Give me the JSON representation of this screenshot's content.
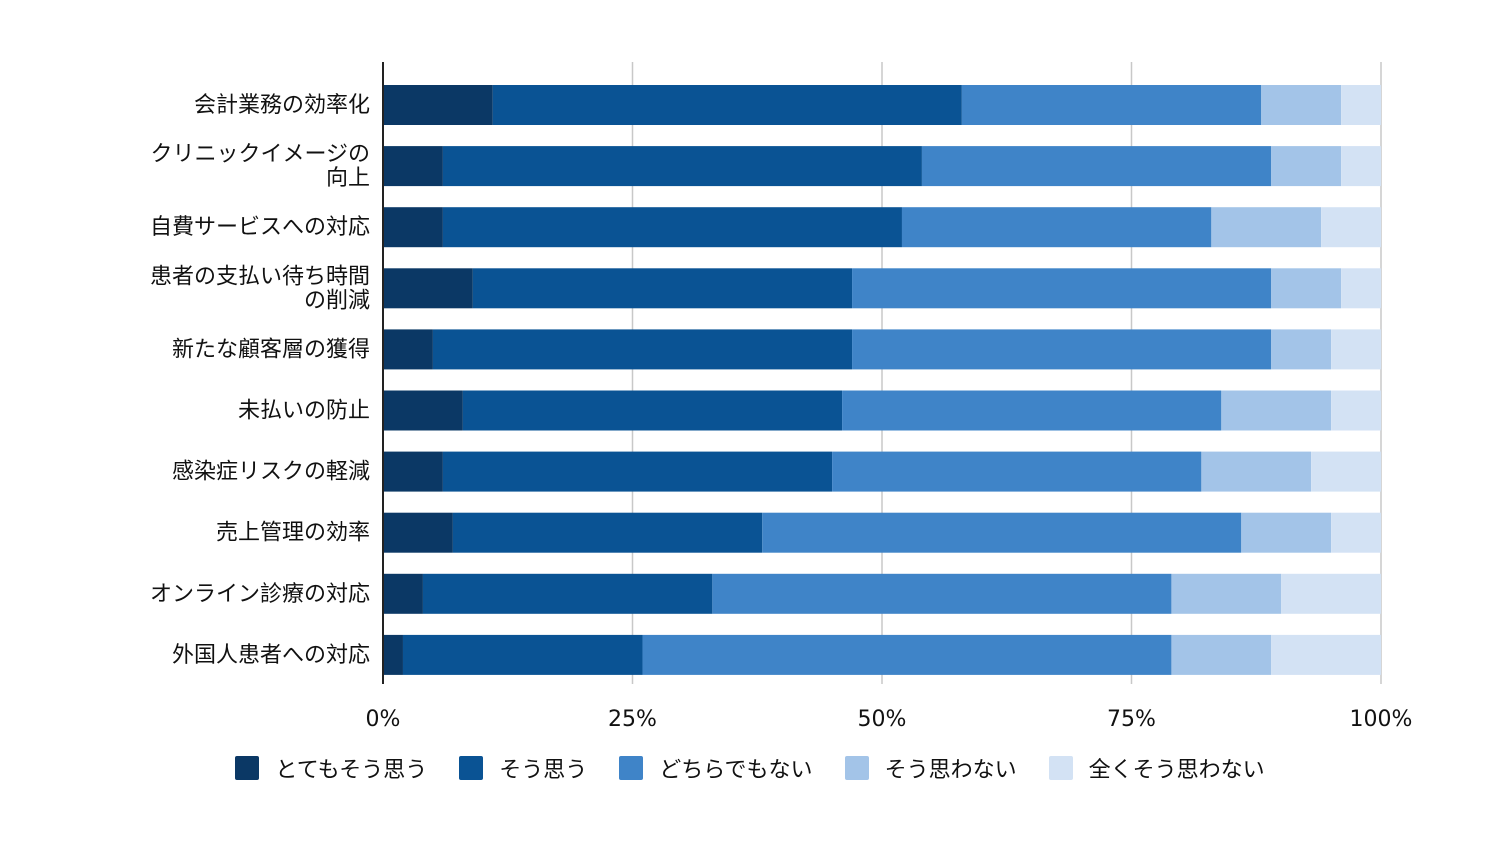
{
  "chart_data": {
    "type": "bar",
    "orientation": "horizontal",
    "stacked": true,
    "title": "",
    "xlabel": "",
    "ylabel": "",
    "xlim": [
      0,
      100
    ],
    "x_ticks": [
      "0%",
      "25%",
      "50%",
      "75%",
      "100%"
    ],
    "grid": true,
    "legend_position": "bottom",
    "categories": [
      [
        "会計業務の効率化"
      ],
      [
        "クリニックイメージの",
        "向上"
      ],
      [
        "自費サービスへの対応"
      ],
      [
        "患者の支払い待ち時間",
        "の削減"
      ],
      [
        "新たな顧客層の獲得"
      ],
      [
        "未払いの防止"
      ],
      [
        "感染症リスクの軽減"
      ],
      [
        "売上管理の効率"
      ],
      [
        "オンライン診療の対応"
      ],
      [
        "外国人患者への対応"
      ]
    ],
    "series": [
      {
        "name": "とてもそう思う",
        "color": "#0b3865",
        "values": [
          11,
          6,
          6,
          9,
          5,
          8,
          6,
          7,
          4,
          2
        ]
      },
      {
        "name": "そう思う",
        "color": "#0a5394",
        "values": [
          47,
          48,
          46,
          38,
          42,
          38,
          39,
          31,
          29,
          24
        ]
      },
      {
        "name": "どちらでもない",
        "color": "#3f84c8",
        "values": [
          30,
          35,
          31,
          42,
          42,
          38,
          37,
          48,
          46,
          53
        ]
      },
      {
        "name": "そう思わない",
        "color": "#a3c4e8",
        "values": [
          8,
          7,
          11,
          7,
          6,
          11,
          11,
          9,
          11,
          10
        ]
      },
      {
        "name": "全くそう思わない",
        "color": "#d3e2f4",
        "values": [
          4,
          4,
          6,
          4,
          5,
          5,
          7,
          5,
          10,
          11
        ]
      }
    ]
  }
}
